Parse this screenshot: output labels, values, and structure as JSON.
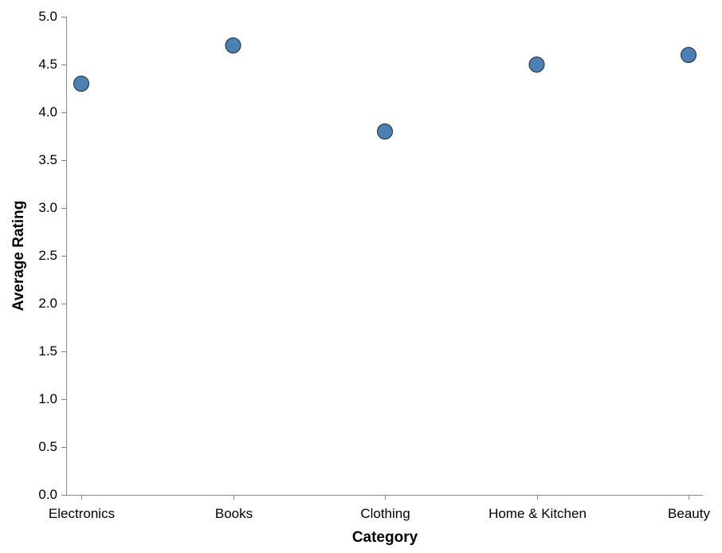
{
  "chart_data": {
    "type": "scatter",
    "title": "",
    "xlabel": "Category",
    "ylabel": "Average Rating",
    "categories": [
      "Electronics",
      "Books",
      "Clothing",
      "Home & Kitchen",
      "Beauty"
    ],
    "values": [
      4.3,
      4.7,
      3.8,
      4.5,
      4.6
    ],
    "ylim": [
      0,
      5
    ],
    "yticks": [
      "0.0",
      "0.5",
      "1.0",
      "1.5",
      "2.0",
      "2.5",
      "3.0",
      "3.5",
      "4.0",
      "4.5",
      "5.0"
    ],
    "grid": false,
    "point_color": "#4c7fb3"
  }
}
